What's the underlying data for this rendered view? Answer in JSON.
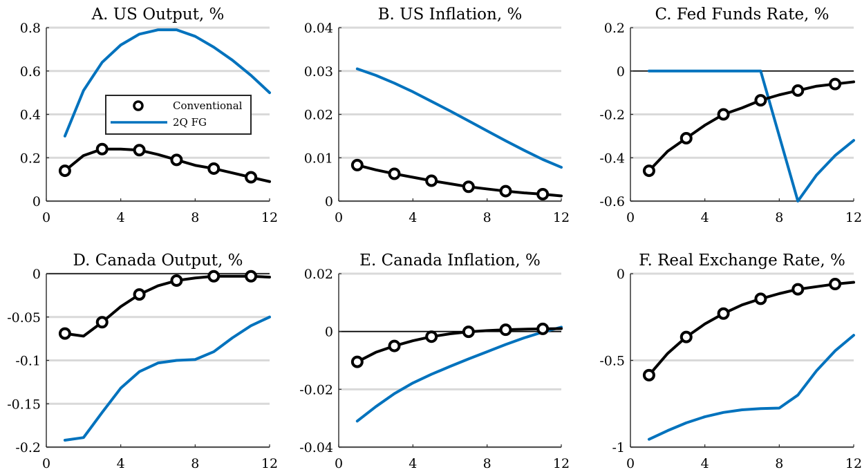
{
  "legend": {
    "entries": [
      {
        "label": "Conventional",
        "style": "black-line-circles"
      },
      {
        "label": "2Q FG",
        "style": "blue-line"
      }
    ],
    "panel": "A",
    "placement": "inside-center-left"
  },
  "colors": {
    "conventional": "#000000",
    "fg": "#0072bd",
    "grid": "#d9d9d9",
    "zero_line": "#000000"
  },
  "chart_data": [
    {
      "type": "line",
      "panel": "A",
      "title": "A. US Output, %",
      "xlim": [
        0,
        12
      ],
      "ylim": [
        0,
        0.8
      ],
      "xticks": [
        0,
        4,
        8,
        12
      ],
      "xtick_labels": [
        "0",
        "4",
        "8",
        "12"
      ],
      "yticks": [
        0,
        0.2,
        0.4,
        0.6,
        0.8
      ],
      "ytick_labels": [
        "0",
        "0.2",
        "0.4",
        "0.6",
        "0.8"
      ],
      "zero_line": false,
      "grid": "horizontal",
      "x": [
        1,
        2,
        3,
        4,
        5,
        6,
        7,
        8,
        9,
        10,
        11,
        12
      ],
      "series": [
        {
          "name": "Conventional",
          "values": [
            0.14,
            0.21,
            0.24,
            0.24,
            0.235,
            0.215,
            0.19,
            0.165,
            0.15,
            0.13,
            0.11,
            0.09
          ],
          "markers": [
            1,
            3,
            5,
            7,
            9,
            11
          ]
        },
        {
          "name": "2Q FG",
          "values": [
            0.3,
            0.51,
            0.64,
            0.72,
            0.77,
            0.79,
            0.79,
            0.76,
            0.71,
            0.65,
            0.58,
            0.5
          ]
        }
      ]
    },
    {
      "type": "line",
      "panel": "B",
      "title": "B. US Inflation, %",
      "xlim": [
        0,
        12
      ],
      "ylim": [
        0,
        0.04
      ],
      "xticks": [
        0,
        4,
        8,
        12
      ],
      "xtick_labels": [
        "0",
        "4",
        "8",
        "12"
      ],
      "yticks": [
        0,
        0.01,
        0.02,
        0.03,
        0.04
      ],
      "ytick_labels": [
        "0",
        "0.01",
        "0.02",
        "0.03",
        "0.04"
      ],
      "zero_line": false,
      "grid": "horizontal",
      "x": [
        1,
        2,
        3,
        4,
        5,
        6,
        7,
        8,
        9,
        10,
        11,
        12
      ],
      "series": [
        {
          "name": "Conventional",
          "values": [
            0.0083,
            0.0072,
            0.0063,
            0.0055,
            0.0047,
            0.004,
            0.0033,
            0.0028,
            0.0023,
            0.0019,
            0.0016,
            0.0012
          ],
          "markers": [
            1,
            3,
            5,
            7,
            9,
            11
          ]
        },
        {
          "name": "2Q FG",
          "values": [
            0.0305,
            0.029,
            0.0272,
            0.0252,
            0.023,
            0.0208,
            0.0185,
            0.0162,
            0.0139,
            0.0117,
            0.0096,
            0.0078
          ]
        }
      ]
    },
    {
      "type": "line",
      "panel": "C",
      "title": "C. Fed Funds Rate, %",
      "xlim": [
        0,
        12
      ],
      "ylim": [
        -0.6,
        0.2
      ],
      "xticks": [
        0,
        4,
        8,
        12
      ],
      "xtick_labels": [
        "0",
        "4",
        "8",
        "12"
      ],
      "yticks": [
        -0.6,
        -0.4,
        -0.2,
        0,
        0.2
      ],
      "ytick_labels": [
        "-0.6",
        "-0.4",
        "-0.2",
        "0",
        "0.2"
      ],
      "zero_line": true,
      "grid": "horizontal",
      "x": [
        1,
        2,
        3,
        4,
        5,
        6,
        7,
        8,
        9,
        10,
        11,
        12
      ],
      "series": [
        {
          "name": "Conventional",
          "values": [
            -0.46,
            -0.37,
            -0.31,
            -0.25,
            -0.2,
            -0.17,
            -0.135,
            -0.11,
            -0.09,
            -0.07,
            -0.06,
            -0.05
          ],
          "markers": [
            1,
            3,
            5,
            7,
            9,
            11
          ]
        },
        {
          "name": "2Q FG",
          "values": [
            0,
            0,
            0,
            0,
            0,
            0,
            0,
            -0.3,
            -0.6,
            -0.48,
            -0.39,
            -0.32
          ]
        }
      ]
    },
    {
      "type": "line",
      "panel": "D",
      "title": "D. Canada Output, %",
      "xlim": [
        0,
        12
      ],
      "ylim": [
        -0.2,
        0
      ],
      "xticks": [
        0,
        4,
        8,
        12
      ],
      "xtick_labels": [
        "0",
        "4",
        "8",
        "12"
      ],
      "yticks": [
        -0.2,
        -0.15,
        -0.1,
        -0.05,
        0
      ],
      "ytick_labels": [
        "-0.2",
        "-0.15",
        "-0.1",
        "-0.05",
        "0"
      ],
      "zero_line": true,
      "grid": "horizontal",
      "x": [
        1,
        2,
        3,
        4,
        5,
        6,
        7,
        8,
        9,
        10,
        11,
        12
      ],
      "series": [
        {
          "name": "Conventional",
          "values": [
            -0.069,
            -0.072,
            -0.056,
            -0.038,
            -0.024,
            -0.014,
            -0.008,
            -0.005,
            -0.003,
            -0.003,
            -0.003,
            -0.004
          ],
          "markers": [
            1,
            3,
            5,
            7,
            9,
            11
          ]
        },
        {
          "name": "2Q FG",
          "values": [
            -0.192,
            -0.189,
            -0.16,
            -0.132,
            -0.113,
            -0.103,
            -0.1,
            -0.099,
            -0.09,
            -0.074,
            -0.06,
            -0.05
          ]
        }
      ]
    },
    {
      "type": "line",
      "panel": "E",
      "title": "E. Canada Inflation, %",
      "xlim": [
        0,
        12
      ],
      "ylim": [
        -0.04,
        0.02
      ],
      "xticks": [
        0,
        4,
        8,
        12
      ],
      "xtick_labels": [
        "0",
        "4",
        "8",
        "12"
      ],
      "yticks": [
        -0.04,
        -0.02,
        0,
        0.02
      ],
      "ytick_labels": [
        "-0.04",
        "-0.02",
        "0",
        "0.02"
      ],
      "zero_line": true,
      "grid": "horizontal",
      "x": [
        1,
        2,
        3,
        4,
        5,
        6,
        7,
        8,
        9,
        10,
        11,
        12
      ],
      "series": [
        {
          "name": "Conventional",
          "values": [
            -0.0105,
            -0.0072,
            -0.005,
            -0.0032,
            -0.0018,
            -0.0008,
            -0.0001,
            0.0003,
            0.0006,
            0.0008,
            0.0009,
            0.001
          ],
          "markers": [
            1,
            3,
            5,
            7,
            9,
            11
          ]
        },
        {
          "name": "2Q FG",
          "values": [
            -0.031,
            -0.026,
            -0.0215,
            -0.0178,
            -0.0148,
            -0.0121,
            -0.0095,
            -0.007,
            -0.0045,
            -0.0022,
            -0.0002,
            0.0015
          ]
        }
      ]
    },
    {
      "type": "line",
      "panel": "F",
      "title": "F. Real Exchange Rate, %",
      "xlim": [
        0,
        12
      ],
      "ylim": [
        -1,
        0
      ],
      "xticks": [
        0,
        4,
        8,
        12
      ],
      "xtick_labels": [
        "0",
        "4",
        "8",
        "12"
      ],
      "yticks": [
        -1,
        -0.5,
        0
      ],
      "ytick_labels": [
        "-1",
        "-0.5",
        "0"
      ],
      "zero_line": false,
      "grid": "horizontal",
      "x": [
        1,
        2,
        3,
        4,
        5,
        6,
        7,
        8,
        9,
        10,
        11,
        12
      ],
      "series": [
        {
          "name": "Conventional",
          "values": [
            -0.585,
            -0.46,
            -0.365,
            -0.29,
            -0.23,
            -0.18,
            -0.145,
            -0.115,
            -0.09,
            -0.075,
            -0.06,
            -0.05
          ],
          "markers": [
            1,
            3,
            5,
            7,
            9,
            11
          ]
        },
        {
          "name": "2Q FG",
          "values": [
            -0.955,
            -0.905,
            -0.86,
            -0.825,
            -0.8,
            -0.785,
            -0.778,
            -0.775,
            -0.7,
            -0.56,
            -0.445,
            -0.355
          ]
        }
      ]
    }
  ]
}
